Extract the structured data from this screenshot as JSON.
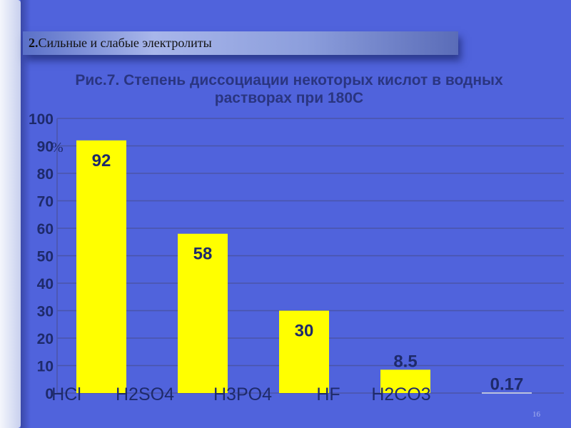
{
  "header": {
    "number": "2.",
    "title": "Сильные и слабые электролиты"
  },
  "page_number": "16",
  "chart_data": {
    "type": "bar",
    "title": "Рис.7. Степень диссоциации некоторых кислот в водных растворах при 180С",
    "ylabel": "%",
    "categories": [
      "HCl",
      "H2SO4",
      "H3PO4",
      "HF",
      "H2CO3"
    ],
    "values": [
      92,
      58,
      30,
      8.5,
      0.17
    ],
    "data_labels": [
      "92",
      "58",
      "30",
      "8.5",
      "0.17"
    ],
    "ylim": [
      0,
      100
    ],
    "yticks": [
      0,
      10,
      20,
      30,
      40,
      50,
      60,
      70,
      80,
      90,
      100
    ],
    "grid": true,
    "bar_color": "#ffff00",
    "background": "#5063dc"
  }
}
